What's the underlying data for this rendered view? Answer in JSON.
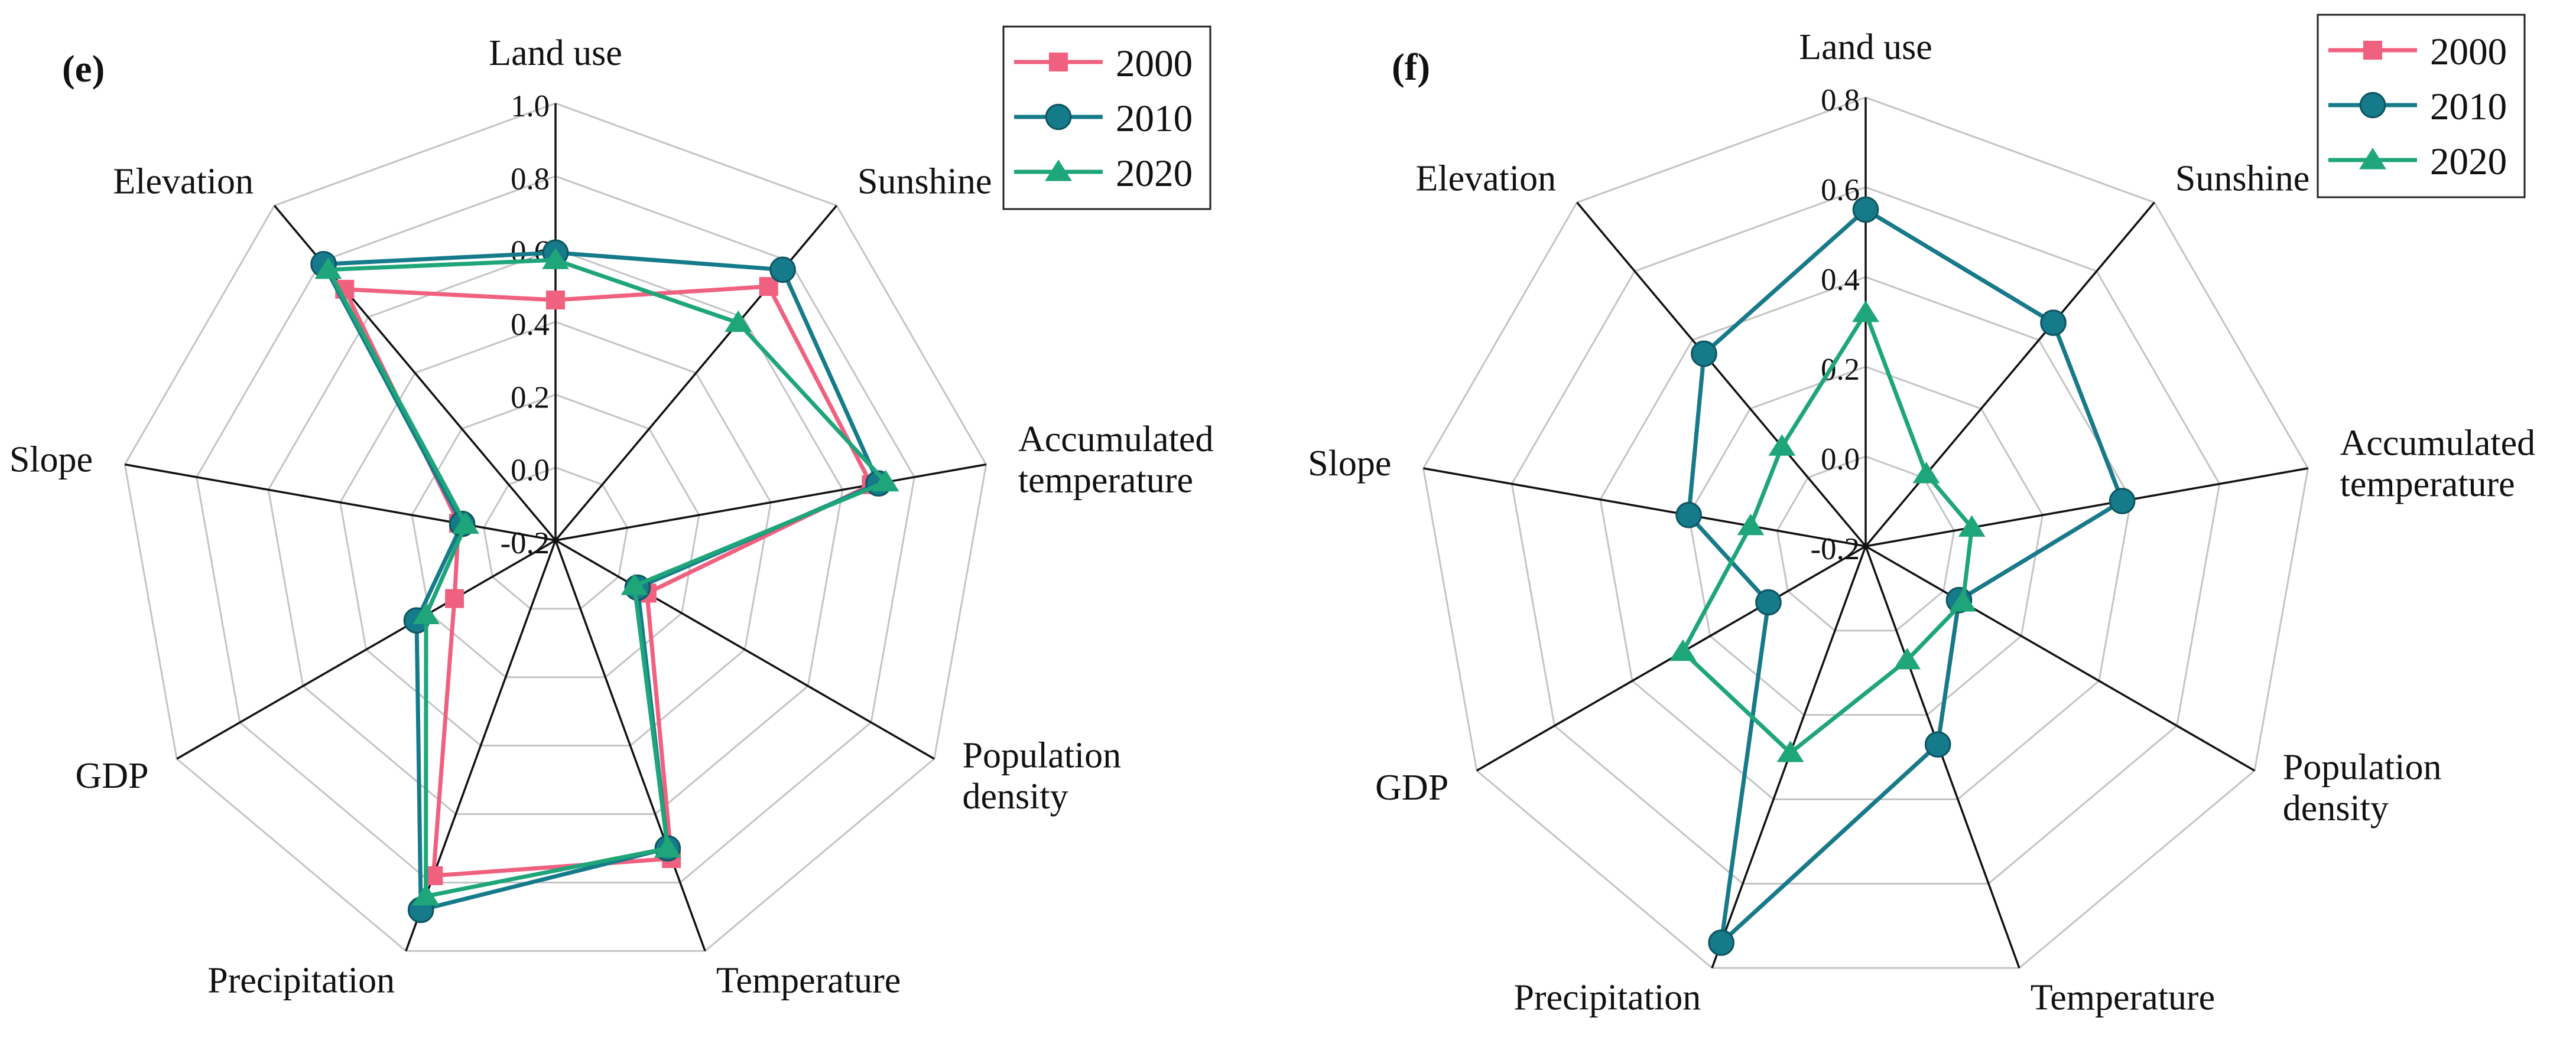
{
  "colors": {
    "2000": "#f0607f",
    "2010": "#157b8a",
    "2020": "#1fa57a",
    "grid": "#c4c4c4",
    "spoke": "#111111"
  },
  "chart_data": [
    {
      "type": "radar",
      "panel_label": "(e)",
      "axes": [
        "Land use",
        "Sunshine",
        "Accumulated temperature",
        "Population density",
        "Temperature",
        "Precipitation",
        "GDP",
        "Slope",
        "Elevation"
      ],
      "axis_label_lines": [
        [
          "Land use"
        ],
        [
          "Sunshine"
        ],
        [
          "Accumulated",
          "temperature"
        ],
        [
          "Population",
          "density"
        ],
        [
          "Temperature"
        ],
        [
          "Precipitation"
        ],
        [
          "GDP"
        ],
        [
          "Slope"
        ],
        [
          "Elevation"
        ]
      ],
      "rlim": [
        -0.2,
        1.0
      ],
      "ticks": [
        -0.2,
        0.0,
        0.2,
        0.4,
        0.6,
        0.8,
        1.0
      ],
      "tick_labels": [
        "-0.2",
        "0.0",
        "0.2",
        "0.4",
        "0.6",
        "0.8",
        "1.0"
      ],
      "legend_position": "top-right",
      "series": [
        {
          "name": "2000",
          "marker": "square",
          "values": [
            0.46,
            0.71,
            0.68,
            0.09,
            0.73,
            0.78,
            0.12,
            0.07,
            0.7
          ]
        },
        {
          "name": "2010",
          "marker": "circle",
          "values": [
            0.59,
            0.77,
            0.7,
            0.06,
            0.7,
            0.88,
            0.24,
            0.06,
            0.79
          ]
        },
        {
          "name": "2020",
          "marker": "triangle",
          "values": [
            0.57,
            0.58,
            0.72,
            0.05,
            0.7,
            0.84,
            0.21,
            0.05,
            0.77
          ]
        }
      ]
    },
    {
      "type": "radar",
      "panel_label": "(f)",
      "axes": [
        "Land use",
        "Sunshine",
        "Accumulated temperature",
        "Population density",
        "Temperature",
        "Precipitation",
        "GDP",
        "Slope",
        "Elevation"
      ],
      "axis_label_lines": [
        [
          "Land use"
        ],
        [
          "Sunshine"
        ],
        [
          "Accumulated",
          "temperature"
        ],
        [
          "Population",
          "density"
        ],
        [
          "Temperature"
        ],
        [
          "Precipitation"
        ],
        [
          "GDP"
        ],
        [
          "Slope"
        ],
        [
          "Elevation"
        ]
      ],
      "rlim": [
        -0.2,
        0.8
      ],
      "ticks": [
        -0.2,
        0.0,
        0.2,
        0.4,
        0.6,
        0.8
      ],
      "tick_labels": [
        "-0.2",
        "0.0",
        "0.2",
        "0.4",
        "0.6",
        "0.8"
      ],
      "legend_position": "top-right",
      "series": [
        {
          "name": "2000",
          "marker": "square",
          "values": [
            0.55,
            0.45,
            0.38,
            0.04,
            0.27,
            0.74,
            0.05,
            0.2,
            0.36
          ]
        },
        {
          "name": "2010",
          "marker": "circle",
          "values": [
            0.55,
            0.45,
            0.38,
            0.04,
            0.27,
            0.74,
            0.05,
            0.2,
            0.36
          ]
        },
        {
          "name": "2020",
          "marker": "triangle",
          "values": [
            0.32,
            0.01,
            0.04,
            0.05,
            0.07,
            0.29,
            0.27,
            0.06,
            0.09
          ]
        }
      ]
    }
  ]
}
